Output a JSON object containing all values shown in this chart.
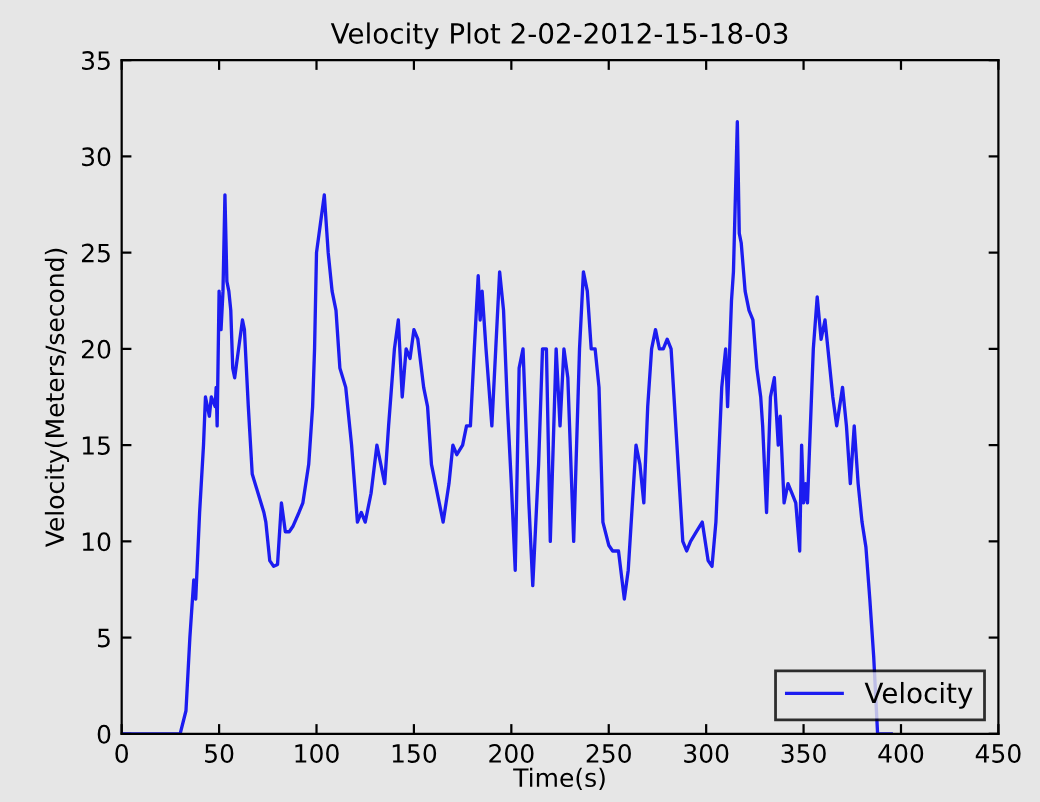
{
  "chart_data": {
    "type": "line",
    "title": "Velocity Plot 2-02-2012-15-18-03",
    "xlabel": "Time(s)",
    "ylabel": "Velocity(Meters/second)",
    "xlim": [
      0,
      450
    ],
    "ylim": [
      0,
      35
    ],
    "xticks": [
      0,
      50,
      100,
      150,
      200,
      250,
      300,
      350,
      400,
      450
    ],
    "yticks": [
      0,
      5,
      10,
      15,
      20,
      25,
      30,
      35
    ],
    "legend": "bottom right",
    "grid": false,
    "series": [
      {
        "name": "Velocity",
        "color": "#1c1cf0",
        "x": [
          0,
          30,
          33,
          35,
          37,
          38,
          40,
          42,
          43,
          45,
          46,
          48,
          48.5,
          49,
          50,
          51,
          52,
          53,
          54,
          55,
          56,
          57,
          58,
          60,
          62,
          63,
          65,
          67,
          70,
          73,
          74,
          76,
          78,
          80,
          82,
          84,
          86,
          88,
          91,
          93,
          96,
          98,
          99,
          100,
          102,
          104,
          106,
          108,
          110,
          112,
          115,
          118,
          121,
          123,
          125,
          128,
          131,
          133,
          135,
          137,
          140,
          142,
          144,
          146,
          148,
          150,
          152,
          155,
          157,
          159,
          163,
          165,
          168,
          170,
          172,
          175,
          177,
          179,
          181,
          183,
          184,
          185,
          187,
          190,
          192,
          194,
          196,
          198,
          200,
          202,
          204,
          206,
          209,
          211,
          214,
          216,
          218,
          220,
          223,
          225,
          227,
          229,
          232,
          235,
          237,
          239,
          241,
          243,
          245,
          247,
          250,
          252,
          255,
          258,
          260,
          264,
          266,
          268,
          270,
          272,
          274,
          276,
          278,
          280,
          282,
          285,
          288,
          290,
          292,
          295,
          298,
          301,
          303,
          305,
          308,
          310,
          311,
          313,
          314,
          316,
          317,
          318,
          320,
          322,
          324,
          326,
          328,
          329,
          331,
          333,
          335,
          337,
          338,
          340,
          342,
          344,
          346,
          348,
          349,
          350,
          351,
          352,
          355,
          357,
          359,
          361,
          363,
          365,
          367,
          370,
          372,
          374,
          376,
          378,
          380,
          382,
          384,
          386,
          388,
          395
        ],
        "values": [
          0,
          0,
          1.2,
          5,
          8,
          7,
          11.5,
          15,
          17.5,
          16.5,
          17.5,
          17,
          18,
          16,
          23,
          21,
          23,
          28,
          23.5,
          23,
          22,
          19,
          18.5,
          20,
          21.5,
          21,
          17,
          13.5,
          12.5,
          11.5,
          11,
          9,
          8.7,
          8.8,
          12,
          10.5,
          10.5,
          10.8,
          11.5,
          12,
          14,
          17,
          20,
          25,
          26.5,
          28,
          25,
          23,
          22,
          19,
          18,
          15,
          11,
          11.5,
          11,
          12.5,
          15,
          14,
          13,
          16,
          20,
          21.5,
          17.5,
          20,
          19.5,
          21,
          20.5,
          18,
          17,
          14,
          12,
          11,
          13,
          15,
          14.5,
          15,
          16,
          16,
          20,
          23.8,
          21.5,
          23,
          20,
          16,
          20,
          24,
          22,
          17,
          13,
          8.5,
          19,
          20,
          12,
          7.7,
          14,
          20,
          20,
          10,
          20,
          16,
          20,
          18.5,
          10,
          20,
          24,
          23,
          20,
          20,
          18,
          11,
          9.8,
          9.5,
          9.5,
          7,
          8.5,
          15,
          14,
          12,
          17,
          20,
          21,
          20,
          20,
          20.5,
          20,
          15,
          10,
          9.5,
          10,
          10.5,
          11,
          9,
          8.7,
          11,
          18,
          20,
          17,
          22.5,
          24,
          31.8,
          26,
          25.5,
          23,
          22,
          21.5,
          19,
          17.5,
          16,
          11.5,
          17.5,
          18.5,
          15,
          16.5,
          12,
          13,
          12.5,
          12,
          9.5,
          15,
          12,
          13,
          12,
          20,
          22.7,
          20.5,
          21.5,
          19.5,
          17.5,
          16,
          18,
          16,
          13,
          16,
          13,
          11,
          9.7,
          7,
          4,
          0,
          0
        ]
      }
    ]
  }
}
